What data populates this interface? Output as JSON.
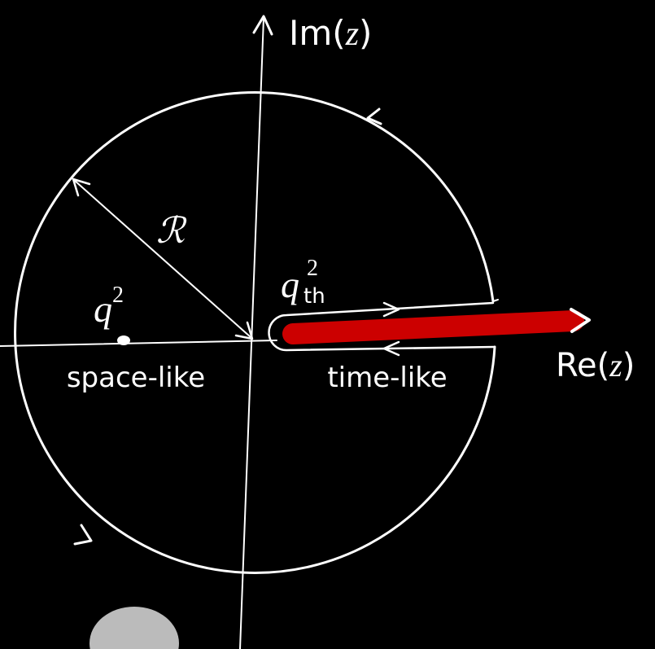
{
  "axes": {
    "imaginary": {
      "parts": [
        "Im(",
        "z",
        ")"
      ]
    },
    "real": {
      "parts": [
        "Re(",
        "z",
        ")"
      ]
    }
  },
  "radius_label": "ℛ",
  "point": {
    "base": "q",
    "sup": "2"
  },
  "threshold": {
    "base": "q",
    "sup": "2",
    "sub": "th"
  },
  "regions": {
    "space_like": "space-like",
    "time_like": "time-like"
  }
}
